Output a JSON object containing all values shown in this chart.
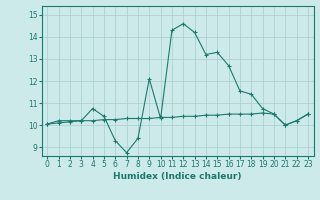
{
  "xlabel": "Humidex (Indice chaleur)",
  "bg_color": "#cceaea",
  "line_color": "#1a7a6e",
  "grid_color": "#aacccc",
  "xlim": [
    -0.5,
    23.5
  ],
  "ylim": [
    8.6,
    15.4
  ],
  "yticks": [
    9,
    10,
    11,
    12,
    13,
    14,
    15
  ],
  "xticks": [
    0,
    1,
    2,
    3,
    4,
    5,
    6,
    7,
    8,
    9,
    10,
    11,
    12,
    13,
    14,
    15,
    16,
    17,
    18,
    19,
    20,
    21,
    22,
    23
  ],
  "line1_x": [
    0,
    1,
    2,
    3,
    4,
    5,
    6,
    7,
    8,
    9,
    10,
    11,
    12,
    13,
    14,
    15,
    16,
    17,
    18,
    19,
    20,
    21,
    22,
    23
  ],
  "line1_y": [
    10.05,
    10.2,
    10.2,
    10.2,
    10.75,
    10.4,
    9.3,
    8.75,
    9.4,
    12.1,
    10.3,
    14.3,
    14.6,
    14.2,
    13.2,
    13.3,
    12.7,
    11.55,
    11.4,
    10.75,
    10.5,
    10.0,
    10.2,
    10.5
  ],
  "line2_x": [
    0,
    1,
    2,
    3,
    4,
    5,
    6,
    7,
    8,
    9,
    10,
    11,
    12,
    13,
    14,
    15,
    16,
    17,
    18,
    19,
    20,
    21,
    22,
    23
  ],
  "line2_y": [
    10.05,
    10.1,
    10.15,
    10.2,
    10.2,
    10.25,
    10.25,
    10.3,
    10.3,
    10.3,
    10.35,
    10.35,
    10.4,
    10.4,
    10.45,
    10.45,
    10.5,
    10.5,
    10.5,
    10.55,
    10.5,
    10.0,
    10.2,
    10.5
  ]
}
